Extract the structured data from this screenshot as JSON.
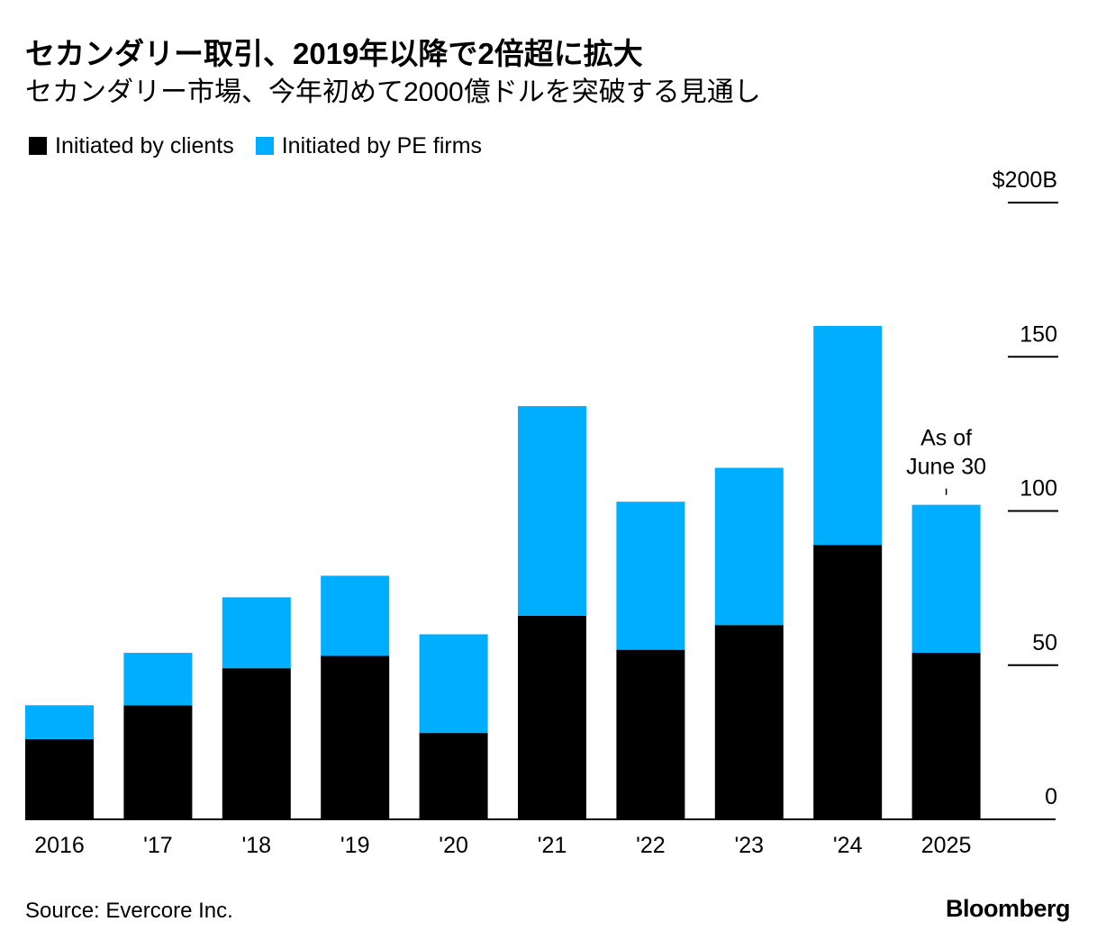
{
  "header": {
    "title": "セカンダリー取引、2019年以降で2倍超に拡大",
    "subtitle": "セカンダリー市場、今年初めて2000億ドルを突破する見通し"
  },
  "legend": {
    "clients_label": "Initiated by clients",
    "pe_label": "Initiated by PE firms"
  },
  "colors": {
    "clients": "#000000",
    "pe": "#00aeff",
    "gridline": "#000000"
  },
  "chart_data": {
    "type": "bar",
    "stacked": true,
    "categories": [
      "2016",
      "'17",
      "'18",
      "'19",
      "'20",
      "'21",
      "'22",
      "'23",
      "'24",
      "2025"
    ],
    "series": [
      {
        "name": "Initiated by clients",
        "values": [
          26,
          37,
          49,
          53,
          28,
          66,
          55,
          63,
          89,
          54
        ]
      },
      {
        "name": "Initiated by PE firms",
        "values": [
          11,
          17,
          23,
          26,
          32,
          68,
          48,
          51,
          71,
          48
        ]
      }
    ],
    "ylim": [
      0,
      200
    ],
    "yticks": [
      {
        "value": 0,
        "label": "0"
      },
      {
        "value": 50,
        "label": "50"
      },
      {
        "value": 100,
        "label": "100"
      },
      {
        "value": 150,
        "label": "150"
      },
      {
        "value": 200,
        "label": "$200B"
      }
    ],
    "annotation": {
      "category": "2025",
      "line1": "As of",
      "line2": "June 30"
    },
    "xlabel": "",
    "ylabel": ""
  },
  "footer": {
    "source": "Source: Evercore Inc.",
    "brand": "Bloomberg"
  }
}
